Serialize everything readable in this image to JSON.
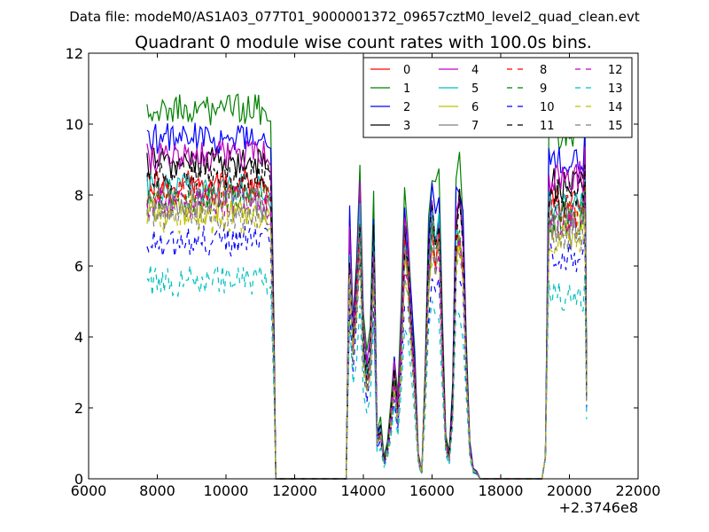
{
  "header": {
    "file_label": "Data file: modeM0/AS1A03_077T01_9000001372_09657cztM0_level2_quad_clean.evt"
  },
  "chart_data": {
    "type": "line",
    "title": "Quadrant 0 module wise count rates with 100.0s bins.",
    "xlabel": "",
    "ylabel": "",
    "xlim": [
      6000,
      22000
    ],
    "ylim": [
      0,
      12
    ],
    "x_offset_label": "+2.3746e8",
    "x_ticks": [
      6000,
      8000,
      10000,
      12000,
      14000,
      16000,
      18000,
      20000,
      22000
    ],
    "y_ticks": [
      0,
      2,
      4,
      6,
      8,
      10,
      12
    ],
    "grid": false,
    "legend_position": "top-right",
    "legend_columns": 4,
    "segments": [
      {
        "start": 7700,
        "end": 11300
      },
      {
        "start": 13550,
        "end": 17350
      },
      {
        "start": 19300,
        "end": 20500
      }
    ],
    "series": [
      {
        "name": "0",
        "color": "#ff0000",
        "dash": "solid",
        "base_level": 8.3
      },
      {
        "name": "1",
        "color": "#008000",
        "dash": "solid",
        "base_level": 10.4
      },
      {
        "name": "2",
        "color": "#0000ff",
        "dash": "solid",
        "base_level": 9.6
      },
      {
        "name": "3",
        "color": "#000000",
        "dash": "solid",
        "base_level": 8.9
      },
      {
        "name": "4",
        "color": "#bf00bf",
        "dash": "solid",
        "base_level": 9.1
      },
      {
        "name": "5",
        "color": "#00bfbf",
        "dash": "solid",
        "base_level": 8.2
      },
      {
        "name": "6",
        "color": "#bfbf00",
        "dash": "solid",
        "base_level": 7.6
      },
      {
        "name": "7",
        "color": "#808080",
        "dash": "solid",
        "base_level": 7.8
      },
      {
        "name": "8",
        "color": "#ff0000",
        "dash": "dashed",
        "base_level": 8.1
      },
      {
        "name": "9",
        "color": "#008000",
        "dash": "dashed",
        "base_level": 7.9
      },
      {
        "name": "10",
        "color": "#0000ff",
        "dash": "dashed",
        "base_level": 6.7
      },
      {
        "name": "11",
        "color": "#000000",
        "dash": "dashed",
        "base_level": 8.6
      },
      {
        "name": "12",
        "color": "#bf00bf",
        "dash": "dashed",
        "base_level": 7.8
      },
      {
        "name": "13",
        "color": "#00bfbf",
        "dash": "dashed",
        "base_level": 5.6
      },
      {
        "name": "14",
        "color": "#bfbf00",
        "dash": "dashed",
        "base_level": 7.3
      },
      {
        "name": "15",
        "color": "#808080",
        "dash": "dashed",
        "base_level": 7.4
      }
    ],
    "profile_mid": [
      [
        13500,
        0.0
      ],
      [
        13600,
        0.75
      ],
      [
        13700,
        0.46
      ],
      [
        13800,
        0.63
      ],
      [
        13900,
        0.89
      ],
      [
        14000,
        0.45
      ],
      [
        14100,
        0.34
      ],
      [
        14200,
        0.42
      ],
      [
        14300,
        0.78
      ],
      [
        14400,
        0.13
      ],
      [
        14500,
        0.16
      ],
      [
        14600,
        0.06
      ],
      [
        14700,
        0.1
      ],
      [
        14800,
        0.2
      ],
      [
        14900,
        0.35
      ],
      [
        15000,
        0.22
      ],
      [
        15100,
        0.44
      ],
      [
        15200,
        0.78
      ],
      [
        15300,
        0.7
      ],
      [
        15400,
        0.5
      ],
      [
        15500,
        0.33
      ],
      [
        15600,
        0.07
      ],
      [
        15700,
        0.02
      ],
      [
        15800,
        0.32
      ],
      [
        15900,
        0.71
      ],
      [
        16000,
        0.86
      ],
      [
        16100,
        0.77
      ],
      [
        16200,
        0.86
      ],
      [
        16300,
        0.45
      ],
      [
        16400,
        0.12
      ],
      [
        16500,
        0.07
      ],
      [
        16600,
        0.25
      ],
      [
        16700,
        0.82
      ],
      [
        16800,
        0.86
      ],
      [
        16900,
        0.75
      ],
      [
        17000,
        0.38
      ],
      [
        17100,
        0.1
      ],
      [
        17200,
        0.03
      ],
      [
        17300,
        0.02
      ],
      [
        17400,
        0.0
      ]
    ]
  }
}
